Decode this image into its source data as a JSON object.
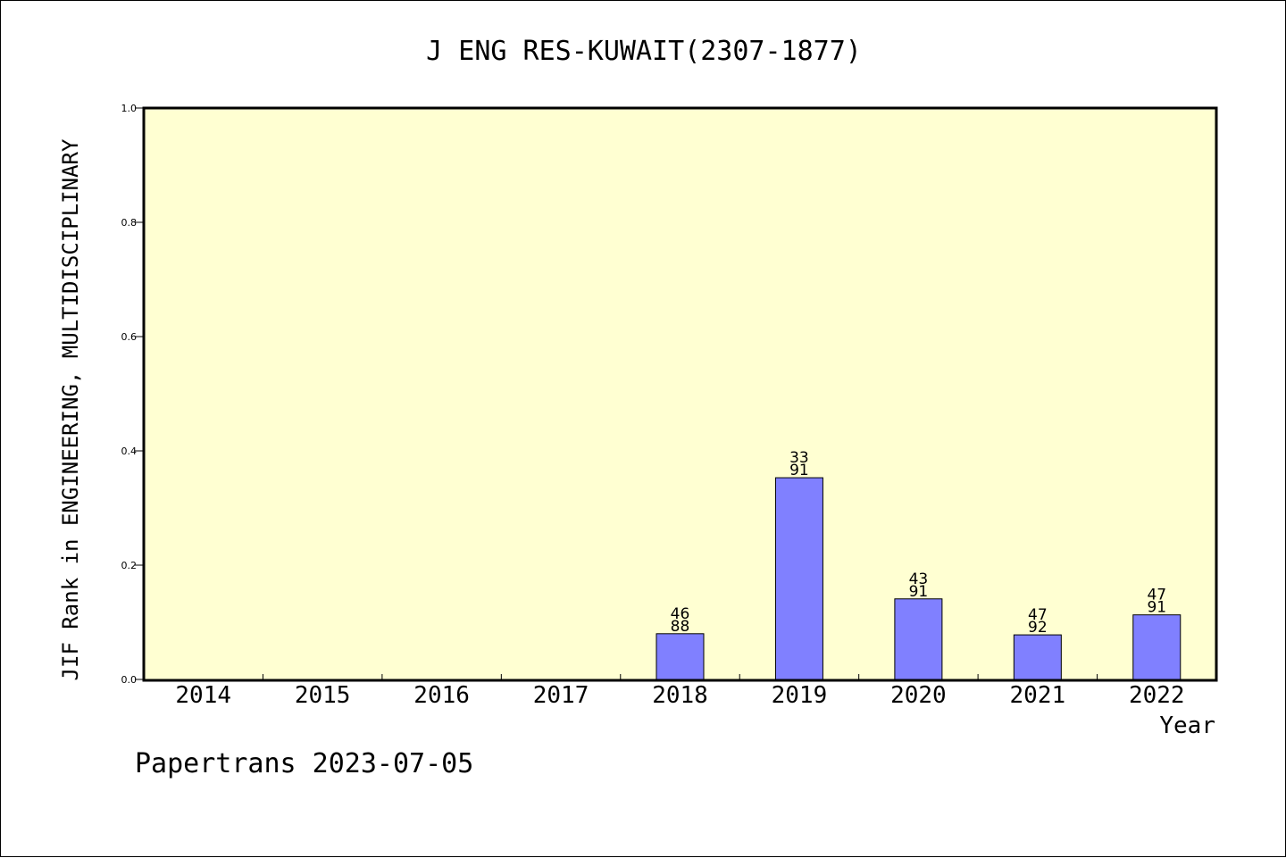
{
  "chart_data": {
    "type": "bar",
    "title": "J ENG RES-KUWAIT(2307-1877)",
    "xlabel": "Year",
    "ylabel": "JIF Rank in ENGINEERING, MULTIDISCIPLINARY",
    "categories": [
      "2014",
      "2015",
      "2016",
      "2017",
      "2018",
      "2019",
      "2020",
      "2021",
      "2022"
    ],
    "values": [
      0,
      0,
      0,
      0,
      0.08,
      0.353,
      0.141,
      0.078,
      0.113
    ],
    "rank_labels": [
      null,
      null,
      null,
      null,
      {
        "rank": "46",
        "total": "88"
      },
      {
        "rank": "33",
        "total": "91"
      },
      {
        "rank": "43",
        "total": "91"
      },
      {
        "rank": "47",
        "total": "92"
      },
      {
        "rank": "47",
        "total": "91"
      }
    ],
    "ylim": [
      0,
      1.0
    ],
    "yticks": [
      "0.0",
      "0.2",
      "0.4",
      "0.6",
      "0.8",
      "1.0"
    ],
    "grid": false,
    "plot_background": "#FFFFD2",
    "bar_color": "#8080FF"
  },
  "footer": "Papertrans 2023-07-05"
}
